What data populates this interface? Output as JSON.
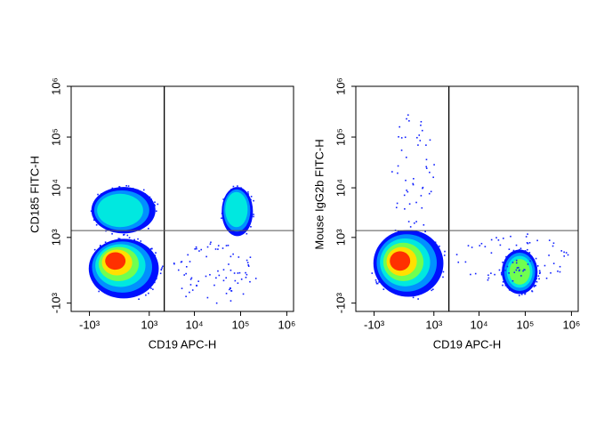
{
  "chart_data": [
    {
      "type": "density",
      "xlabel": "CD19 APC-H",
      "ylabel": "CD185 FITC-H",
      "xlim": [
        -2600,
        1400000
      ],
      "ylim": [
        -1500,
        1000000
      ],
      "xticks": [
        {
          "value": -1000,
          "label": "-10³"
        },
        {
          "value": 1000,
          "label": "10³"
        },
        {
          "value": 10000,
          "label": "10⁴"
        },
        {
          "value": 100000,
          "label": "10⁵"
        },
        {
          "value": 1000000,
          "label": "10⁶"
        }
      ],
      "yticks": [
        {
          "value": -1000,
          "label": "-10³"
        },
        {
          "value": 1000,
          "label": "10³"
        },
        {
          "value": 10000,
          "label": "10⁴"
        },
        {
          "value": 100000,
          "label": "10⁵"
        },
        {
          "value": 1000000,
          "label": "10⁶"
        }
      ],
      "gates": {
        "x": 2200,
        "y": 1400
      },
      "populations": [
        {
          "x": -95,
          "y": 206,
          "xrange": [
            -1040,
            1660
          ],
          "yrange": [
            -785,
            935
          ],
          "peak": 1
        },
        {
          "x": -100,
          "y": 3500,
          "xrange": [
            -900,
            1400
          ],
          "yrange": [
            1220,
            10400
          ],
          "peak": 0.45
        },
        {
          "x": 76000,
          "y": 4260,
          "xrange": [
            39000,
            185000
          ],
          "yrange": [
            1070,
            10400
          ],
          "peak": 0.55
        },
        {
          "x": 20000,
          "y": 0,
          "xrange": [
            2730,
            231000
          ],
          "yrange": [
            -1000,
            855
          ],
          "peak": 0.15
        }
      ]
    },
    {
      "type": "density",
      "xlabel": "CD19 APC-H",
      "ylabel": "Mouse IgG2b FITC-H",
      "xlim": [
        -2600,
        1400000
      ],
      "ylim": [
        -1500,
        1000000
      ],
      "xticks": [
        {
          "value": -1000,
          "label": "-10³"
        },
        {
          "value": 1000,
          "label": "10³"
        },
        {
          "value": 10000,
          "label": "10⁴"
        },
        {
          "value": 100000,
          "label": "10⁵"
        },
        {
          "value": 1000000,
          "label": "10⁶"
        }
      ],
      "yticks": [
        {
          "value": -1000,
          "label": "-10³"
        },
        {
          "value": 1000,
          "label": "10³"
        },
        {
          "value": 10000,
          "label": "10⁴"
        },
        {
          "value": 100000,
          "label": "10⁵"
        },
        {
          "value": 1000000,
          "label": "10⁶"
        }
      ],
      "gates": {
        "x": 2200,
        "y": 1400
      },
      "populations": [
        {
          "x": -95,
          "y": 206,
          "xrange": [
            -1040,
            1660
          ],
          "yrange": [
            -720,
            1440
          ],
          "peak": 1
        },
        {
          "x": 76000,
          "y": -33,
          "xrange": [
            31000,
            185000
          ],
          "yrange": [
            -620,
            515
          ],
          "peak": 0.6
        },
        {
          "x": 20000,
          "y": 300,
          "xrange": [
            2730,
            865000
          ],
          "yrange": [
            -350,
            1330
          ],
          "peak": 0.15
        },
        {
          "x": 300,
          "y": 20000,
          "xrange": [
            -330,
            1090
          ],
          "yrange": [
            1330,
            318000
          ],
          "peak": 0.1
        }
      ]
    }
  ]
}
